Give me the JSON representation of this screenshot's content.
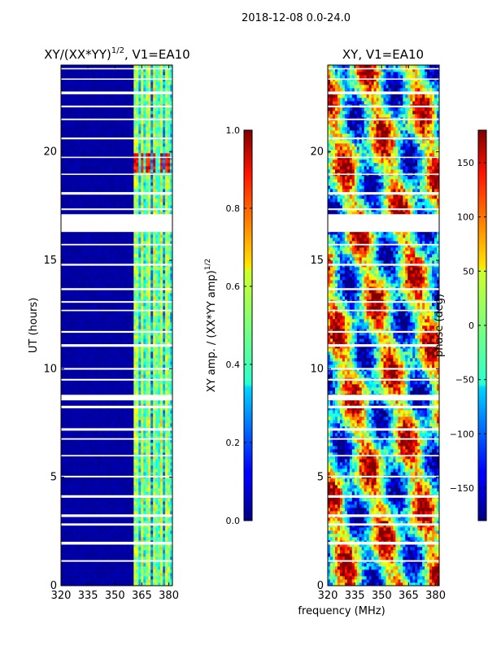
{
  "figure_title": "2018-12-08 0.0-24.0",
  "shared_xlabel": "frequency (MHz)",
  "chart_data": [
    {
      "type": "heatmap",
      "title_main": "XY/(XX*YY)",
      "title_sup": "1/2",
      "title_rest": ", V1=EA10",
      "xlabel": "",
      "ylabel": "UT (hours)",
      "xlim": [
        320,
        382
      ],
      "ylim": [
        0,
        24
      ],
      "xticks": [
        320,
        335,
        350,
        365,
        380
      ],
      "yticks": [
        0,
        5,
        10,
        15,
        20
      ],
      "quantity": "normalized XY amplitude",
      "colorbar": {
        "label_main": "XY amp. / (XX*YY amp)",
        "label_sup": "1/2",
        "range": [
          0.0,
          1.0
        ],
        "ticks": [
          "0.0",
          "0.2",
          "0.4",
          "0.6",
          "0.8",
          "1.0"
        ],
        "tick_values": [
          0.0,
          0.2,
          0.4,
          0.6,
          0.8,
          1.0
        ],
        "colormap": "jet"
      }
    },
    {
      "type": "heatmap",
      "title": "XY, V1=EA10",
      "xlabel": "",
      "ylabel": "",
      "xlim": [
        320,
        382
      ],
      "ylim": [
        0,
        24
      ],
      "xticks": [
        320,
        335,
        350,
        365,
        380
      ],
      "yticks": [
        0,
        5,
        10,
        15,
        20
      ],
      "quantity": "XY phase",
      "colorbar": {
        "label": "phase (deg)",
        "range": [
          -180,
          180
        ],
        "ticks": [
          "−150",
          "−100",
          "−50",
          "0",
          "50",
          "100",
          "150"
        ],
        "tick_values": [
          -150,
          -100,
          -50,
          0,
          50,
          100,
          150
        ],
        "colormap": "jet"
      }
    }
  ],
  "colors": {
    "low": "#00007f",
    "mid": "#7fff7f",
    "high": "#7f0000"
  }
}
